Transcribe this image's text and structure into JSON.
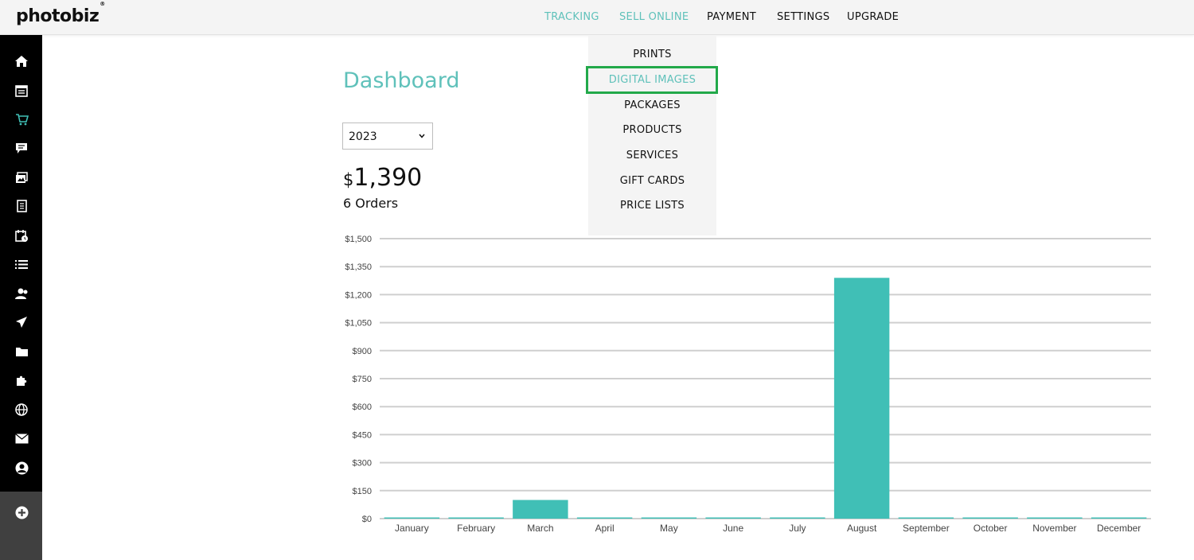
{
  "app": {
    "logo": "photobiz",
    "logo_mark": "®"
  },
  "topnav": [
    {
      "label": "TRACKING",
      "state": "active"
    },
    {
      "label": "SELL ONLINE",
      "state": "active"
    },
    {
      "label": "PAYMENT",
      "state": "normal"
    },
    {
      "label": "SETTINGS",
      "state": "normal"
    },
    {
      "label": "UPGRADE",
      "state": "normal"
    }
  ],
  "dropdown": {
    "items": [
      "PRINTS",
      "DIGITAL IMAGES",
      "PACKAGES",
      "PRODUCTS",
      "SERVICES",
      "GIFT CARDS",
      "PRICE LISTS"
    ],
    "highlighted": "DIGITAL IMAGES"
  },
  "sidebar": {
    "icons": [
      "home-icon",
      "calendar-list-icon",
      "cart-icon",
      "chat-icon",
      "gallery-icon",
      "document-icon",
      "schedule-icon",
      "list-icon",
      "users-icon",
      "send-icon",
      "folder-icon",
      "puzzle-icon",
      "globe-icon",
      "mail-icon",
      "account-icon",
      "add-icon"
    ]
  },
  "dashboard": {
    "title": "Dashboard",
    "year": "2023",
    "currency_symbol": "$",
    "total": "1,390",
    "orders": "6 Orders"
  },
  "colors": {
    "accent": "#5fc1ba",
    "bar": "#40bfb6",
    "highlight_box": "#22a94a",
    "sidebar": "#000000"
  },
  "chart_data": {
    "type": "bar",
    "categories": [
      "January",
      "February",
      "March",
      "April",
      "May",
      "June",
      "July",
      "August",
      "September",
      "October",
      "November",
      "December"
    ],
    "values": [
      0,
      0,
      100,
      0,
      0,
      0,
      0,
      1290,
      0,
      0,
      0,
      0
    ],
    "ylim": [
      0,
      1500
    ],
    "yticks": [
      "$0",
      "$150",
      "$300",
      "$450",
      "$600",
      "$750",
      "$900",
      "$1,050",
      "$1,200",
      "$1,350",
      "$1,500"
    ],
    "grid": true,
    "xlabel": "",
    "ylabel": ""
  }
}
